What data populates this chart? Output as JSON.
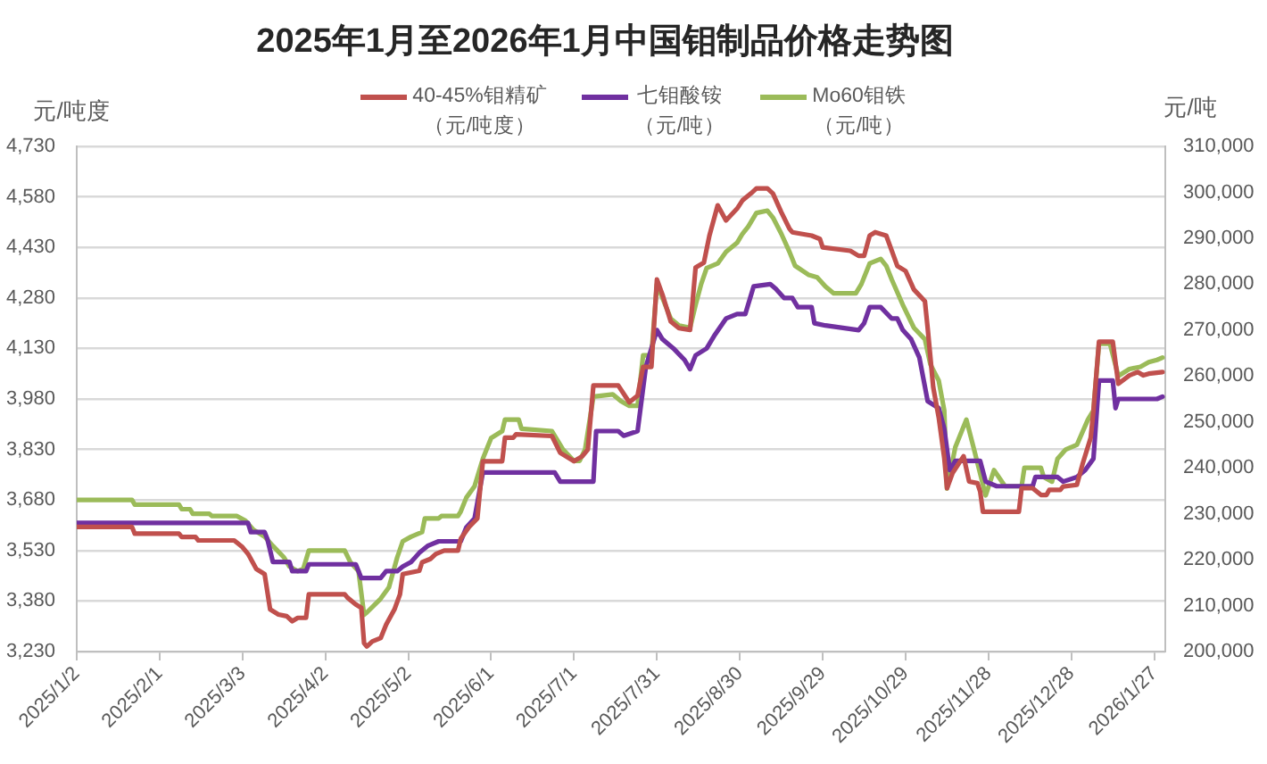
{
  "chart_data": {
    "type": "line",
    "title": "2025年1月至2026年1月中国钼制品价格走势图",
    "ylabel": "元/吨度",
    "y2label": "元/吨",
    "legend": "top",
    "grid": "y",
    "marker": "none",
    "xlim": [
      "2025-01-02",
      "2026-01-31"
    ],
    "xticks": [
      {
        "value": "2025-01-02",
        "label": "2025/1/2"
      },
      {
        "value": "2025-02-01",
        "label": "2025/2/1"
      },
      {
        "value": "2025-03-03",
        "label": "2025/3/3"
      },
      {
        "value": "2025-04-02",
        "label": "2025/4/2"
      },
      {
        "value": "2025-05-02",
        "label": "2025/5/2"
      },
      {
        "value": "2025-06-01",
        "label": "2025/6/1"
      },
      {
        "value": "2025-07-01",
        "label": "2025/7/1"
      },
      {
        "value": "2025-07-31",
        "label": "2025/7/31"
      },
      {
        "value": "2025-08-30",
        "label": "2025/8/30"
      },
      {
        "value": "2025-09-29",
        "label": "2025/9/29"
      },
      {
        "value": "2025-10-29",
        "label": "2025/10/29"
      },
      {
        "value": "2025-11-28",
        "label": "2025/11/28"
      },
      {
        "value": "2025-12-28",
        "label": "2025/12/28"
      },
      {
        "value": "2026-01-27",
        "label": "2026/1/27"
      }
    ],
    "ylim": [
      3230,
      4730
    ],
    "yticks": [
      {
        "value": 3230,
        "label": "3,230"
      },
      {
        "value": 3380,
        "label": "3,380"
      },
      {
        "value": 3530,
        "label": "3,530"
      },
      {
        "value": 3680,
        "label": "3,680"
      },
      {
        "value": 3830,
        "label": "3,830"
      },
      {
        "value": 3980,
        "label": "3,980"
      },
      {
        "value": 4130,
        "label": "4,130"
      },
      {
        "value": 4280,
        "label": "4,280"
      },
      {
        "value": 4430,
        "label": "4,430"
      },
      {
        "value": 4580,
        "label": "4,580"
      },
      {
        "value": 4730,
        "label": "4,730"
      }
    ],
    "y2lim": [
      200000,
      310000
    ],
    "y2ticks": [
      {
        "value": 200000,
        "label": "200,000"
      },
      {
        "value": 210000,
        "label": "210,000"
      },
      {
        "value": 220000,
        "label": "220,000"
      },
      {
        "value": 230000,
        "label": "230,000"
      },
      {
        "value": 240000,
        "label": "240,000"
      },
      {
        "value": 250000,
        "label": "250,000"
      },
      {
        "value": 260000,
        "label": "260,000"
      },
      {
        "value": 270000,
        "label": "270,000"
      },
      {
        "value": 280000,
        "label": "280,000"
      },
      {
        "value": 290000,
        "label": "290,000"
      },
      {
        "value": 300000,
        "label": "300,000"
      },
      {
        "value": 310000,
        "label": "310,000"
      }
    ],
    "series": [
      {
        "name": "40-45%钼精矿（元/吨度）",
        "color": "#c0504d",
        "x": [
          "2025-01-02",
          "2025-01-22",
          "2025-01-23",
          "2025-02-08",
          "2025-02-09",
          "2025-02-14",
          "2025-02-15",
          "2025-02-28",
          "2025-03-03",
          "2025-03-05",
          "2025-03-08",
          "2025-03-11",
          "2025-03-13",
          "2025-03-16",
          "2025-03-19",
          "2025-03-21",
          "2025-03-23",
          "2025-03-26",
          "2025-03-27",
          "2025-04-09",
          "2025-04-10",
          "2025-04-13",
          "2025-04-15",
          "2025-04-16",
          "2025-04-17",
          "2025-04-19",
          "2025-04-22",
          "2025-04-24",
          "2025-04-27",
          "2025-04-29",
          "2025-04-30",
          "2025-05-06",
          "2025-05-07",
          "2025-05-10",
          "2025-05-12",
          "2025-05-15",
          "2025-05-20",
          "2025-05-21",
          "2025-05-24",
          "2025-05-27",
          "2025-05-29",
          "2025-06-05",
          "2025-06-06",
          "2025-06-09",
          "2025-06-10",
          "2025-06-23",
          "2025-06-26",
          "2025-07-01",
          "2025-07-04",
          "2025-07-06",
          "2025-07-08",
          "2025-07-17",
          "2025-07-21",
          "2025-07-24",
          "2025-07-26",
          "2025-07-29",
          "2025-07-31",
          "2025-08-02",
          "2025-08-05",
          "2025-08-08",
          "2025-08-12",
          "2025-08-14",
          "2025-08-17",
          "2025-08-19",
          "2025-08-22",
          "2025-08-25",
          "2025-08-29",
          "2025-08-31",
          "2025-09-03",
          "2025-09-05",
          "2025-09-09",
          "2025-09-11",
          "2025-09-14",
          "2025-09-17",
          "2025-09-18",
          "2025-09-25",
          "2025-09-28",
          "2025-09-29",
          "2025-10-09",
          "2025-10-12",
          "2025-10-14",
          "2025-10-16",
          "2025-10-18",
          "2025-10-22",
          "2025-10-24",
          "2025-10-26",
          "2025-10-29",
          "2025-11-01",
          "2025-11-05",
          "2025-11-06",
          "2025-11-08",
          "2025-11-10",
          "2025-11-12",
          "2025-11-13",
          "2025-11-15",
          "2025-11-19",
          "2025-11-21",
          "2025-11-24",
          "2025-11-25",
          "2025-11-26",
          "2025-12-09",
          "2025-12-10",
          "2025-12-14",
          "2025-12-17",
          "2025-12-19",
          "2025-12-20",
          "2025-12-24",
          "2025-12-25",
          "2025-12-30",
          "2026-01-01",
          "2026-01-04",
          "2026-01-05",
          "2026-01-07",
          "2026-01-12",
          "2026-01-14",
          "2026-01-18",
          "2026-01-21",
          "2026-01-23",
          "2026-01-25",
          "2026-01-30"
        ],
        "values": [
          3600,
          3600,
          3580,
          3580,
          3570,
          3570,
          3560,
          3560,
          3540,
          3520,
          3475,
          3460,
          3355,
          3340,
          3335,
          3320,
          3330,
          3330,
          3400,
          3400,
          3390,
          3370,
          3360,
          3255,
          3245,
          3260,
          3270,
          3310,
          3355,
          3400,
          3460,
          3470,
          3495,
          3505,
          3520,
          3530,
          3530,
          3565,
          3600,
          3625,
          3795,
          3795,
          3865,
          3865,
          3875,
          3870,
          3820,
          3795,
          3810,
          3830,
          4020,
          4020,
          3970,
          3990,
          4075,
          4075,
          4335,
          4290,
          4210,
          4190,
          4185,
          4370,
          4385,
          4465,
          4555,
          4510,
          4545,
          4570,
          4590,
          4605,
          4605,
          4590,
          4535,
          4485,
          4475,
          4465,
          4455,
          4430,
          4420,
          4405,
          4405,
          4465,
          4475,
          4465,
          4420,
          4375,
          4360,
          4305,
          4270,
          4190,
          4015,
          3925,
          3805,
          3715,
          3760,
          3810,
          3735,
          3730,
          3705,
          3645,
          3645,
          3715,
          3715,
          3695,
          3695,
          3710,
          3710,
          3720,
          3725,
          3785,
          3865,
          3945,
          4150,
          4150,
          4025,
          4050,
          4060,
          4050,
          4055,
          4060
        ]
      },
      {
        "name": "七钼酸铵（元/吨）",
        "color": "#7030a0",
        "axis": "y2",
        "x": [
          "2025-01-02",
          "2025-03-05",
          "2025-03-06",
          "2025-03-11",
          "2025-03-12",
          "2025-03-14",
          "2025-03-20",
          "2025-03-21",
          "2025-03-26",
          "2025-03-27",
          "2025-04-13",
          "2025-04-15",
          "2025-04-22",
          "2025-04-24",
          "2025-04-28",
          "2025-04-30",
          "2025-05-03",
          "2025-05-06",
          "2025-05-09",
          "2025-05-13",
          "2025-05-21",
          "2025-05-23",
          "2025-05-26",
          "2025-05-29",
          "2025-06-24",
          "2025-06-26",
          "2025-07-08",
          "2025-07-09",
          "2025-07-17",
          "2025-07-19",
          "2025-07-24",
          "2025-07-27",
          "2025-07-31",
          "2025-08-02",
          "2025-08-06",
          "2025-08-10",
          "2025-08-12",
          "2025-08-14",
          "2025-08-18",
          "2025-08-21",
          "2025-08-25",
          "2025-08-29",
          "2025-09-01",
          "2025-09-04",
          "2025-09-10",
          "2025-09-12",
          "2025-09-15",
          "2025-09-18",
          "2025-09-20",
          "2025-09-25",
          "2025-09-26",
          "2025-09-30",
          "2025-10-12",
          "2025-10-14",
          "2025-10-16",
          "2025-10-20",
          "2025-10-24",
          "2025-10-26",
          "2025-10-28",
          "2025-10-31",
          "2025-11-03",
          "2025-11-06",
          "2025-11-10",
          "2025-11-12",
          "2025-11-14",
          "2025-11-16",
          "2025-11-25",
          "2025-11-27",
          "2025-12-01",
          "2025-12-14",
          "2025-12-15",
          "2025-12-23",
          "2025-12-25",
          "2025-12-30",
          "2026-01-02",
          "2026-01-05",
          "2026-01-07",
          "2026-01-12",
          "2026-01-13",
          "2026-01-14",
          "2026-01-28",
          "2026-01-30"
        ],
        "values": [
          228000,
          228000,
          226000,
          226000,
          224500,
          219500,
          219500,
          217500,
          217500,
          219000,
          219000,
          216000,
          216000,
          217500,
          217500,
          218500,
          219500,
          221500,
          223000,
          224000,
          224000,
          227000,
          229000,
          239000,
          239000,
          237000,
          237000,
          248000,
          248000,
          247000,
          248000,
          262000,
          270000,
          268000,
          266000,
          263500,
          261500,
          264500,
          266000,
          269000,
          272500,
          273500,
          273500,
          279500,
          280000,
          279000,
          277000,
          277000,
          275000,
          275000,
          271500,
          271000,
          270000,
          271500,
          275000,
          275000,
          272500,
          272500,
          270000,
          268000,
          264000,
          254500,
          253000,
          248500,
          239500,
          241500,
          241500,
          237000,
          236000,
          236000,
          238000,
          238000,
          237000,
          238000,
          239500,
          242000,
          259000,
          259000,
          253000,
          255000,
          255000,
          255500
        ]
      },
      {
        "name": "Mo60钼铁（元/吨）",
        "color": "#9bbb59",
        "axis": "y2",
        "x": [
          "2025-01-02",
          "2025-01-22",
          "2025-01-23",
          "2025-02-08",
          "2025-02-09",
          "2025-02-12",
          "2025-02-13",
          "2025-02-19",
          "2025-02-20",
          "2025-03-01",
          "2025-03-04",
          "2025-03-07",
          "2025-03-11",
          "2025-03-14",
          "2025-03-18",
          "2025-03-20",
          "2025-03-23",
          "2025-03-25",
          "2025-03-27",
          "2025-04-09",
          "2025-04-11",
          "2025-04-14",
          "2025-04-16",
          "2025-04-17",
          "2025-04-22",
          "2025-04-25",
          "2025-04-28",
          "2025-04-30",
          "2025-05-03",
          "2025-05-07",
          "2025-05-08",
          "2025-05-13",
          "2025-05-14",
          "2025-05-20",
          "2025-05-21",
          "2025-05-23",
          "2025-05-26",
          "2025-05-29",
          "2025-06-01",
          "2025-06-05",
          "2025-06-06",
          "2025-06-11",
          "2025-06-12",
          "2025-06-23",
          "2025-06-27",
          "2025-07-01",
          "2025-07-03",
          "2025-07-05",
          "2025-07-08",
          "2025-07-15",
          "2025-07-18",
          "2025-07-21",
          "2025-07-24",
          "2025-07-26",
          "2025-07-29",
          "2025-07-31",
          "2025-08-02",
          "2025-08-05",
          "2025-08-08",
          "2025-08-12",
          "2025-08-14",
          "2025-08-16",
          "2025-08-18",
          "2025-08-22",
          "2025-08-25",
          "2025-08-29",
          "2025-08-31",
          "2025-09-02",
          "2025-09-05",
          "2025-09-09",
          "2025-09-11",
          "2025-09-14",
          "2025-09-17",
          "2025-09-19",
          "2025-09-24",
          "2025-09-27",
          "2025-09-30",
          "2025-10-03",
          "2025-10-11",
          "2025-10-13",
          "2025-10-16",
          "2025-10-20",
          "2025-10-22",
          "2025-10-24",
          "2025-10-28",
          "2025-11-01",
          "2025-11-05",
          "2025-11-07",
          "2025-11-10",
          "2025-11-12",
          "2025-11-13",
          "2025-11-16",
          "2025-11-20",
          "2025-11-23",
          "2025-11-27",
          "2025-11-30",
          "2025-12-04",
          "2025-12-10",
          "2025-12-11",
          "2025-12-17",
          "2025-12-18",
          "2025-12-21",
          "2025-12-23",
          "2025-12-26",
          "2025-12-30",
          "2026-01-03",
          "2026-01-05",
          "2026-01-07",
          "2026-01-11",
          "2026-01-14",
          "2026-01-18",
          "2026-01-22",
          "2026-01-25",
          "2026-01-28",
          "2026-01-30"
        ],
        "values": [
          233000,
          233000,
          232000,
          232000,
          231000,
          231000,
          230000,
          230000,
          229500,
          229500,
          228500,
          226500,
          225000,
          223000,
          220500,
          218500,
          217500,
          218000,
          222000,
          222000,
          219500,
          217500,
          208000,
          208500,
          211500,
          214000,
          220500,
          224000,
          225000,
          226000,
          229000,
          229000,
          229500,
          229500,
          230500,
          233500,
          236000,
          242000,
          246500,
          248000,
          250500,
          250500,
          248500,
          248000,
          244000,
          241500,
          241500,
          244000,
          255500,
          256000,
          254500,
          253500,
          253500,
          264500,
          264500,
          280000,
          277000,
          272500,
          271000,
          270500,
          275500,
          280000,
          283500,
          284500,
          287000,
          289000,
          291000,
          292500,
          295500,
          296000,
          294500,
          291000,
          287000,
          284000,
          282000,
          281500,
          279500,
          278000,
          278000,
          280000,
          284500,
          285500,
          284000,
          281000,
          275500,
          270500,
          268000,
          262500,
          259000,
          252500,
          235500,
          244500,
          250500,
          243500,
          234000,
          239500,
          236000,
          236000,
          240000,
          240000,
          238000,
          237000,
          242000,
          244000,
          245000,
          250500,
          252500,
          267000,
          267000,
          260000,
          261500,
          262000,
          263000,
          263500,
          264000
        ]
      }
    ]
  }
}
